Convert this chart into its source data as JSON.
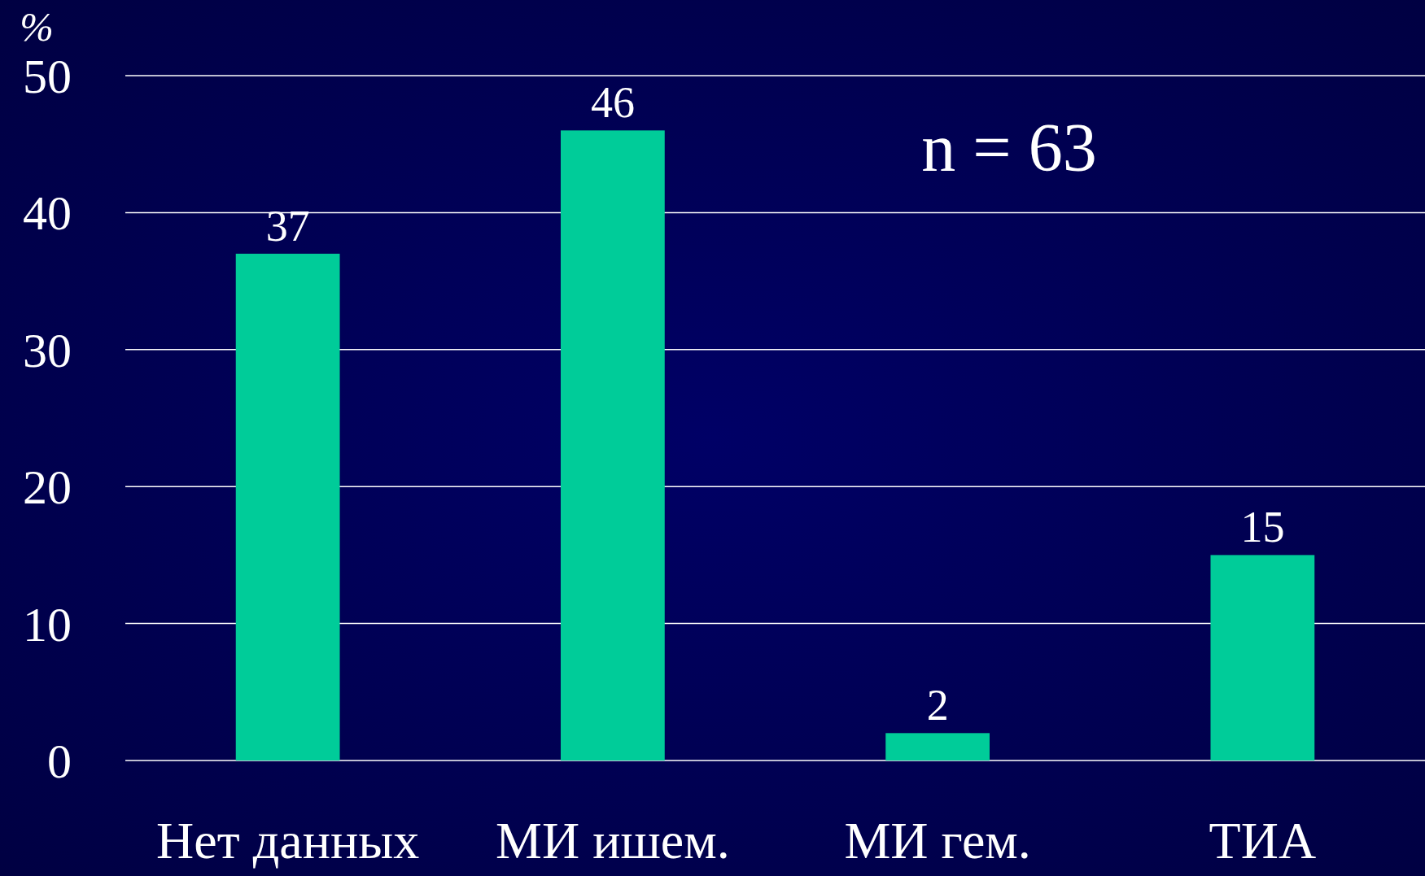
{
  "chart_data": {
    "type": "bar",
    "ylabel": "%",
    "categories": [
      "Нет данных",
      "МИ ишем.",
      "МИ гем.",
      "ТИА"
    ],
    "values": [
      37,
      46,
      2,
      15
    ],
    "color": "#00cc99",
    "ylim": [
      0,
      50
    ],
    "yticks": [
      0,
      10,
      20,
      30,
      40,
      50
    ],
    "grid": true,
    "data_labels": true,
    "annotations": [
      "n = 63"
    ]
  }
}
